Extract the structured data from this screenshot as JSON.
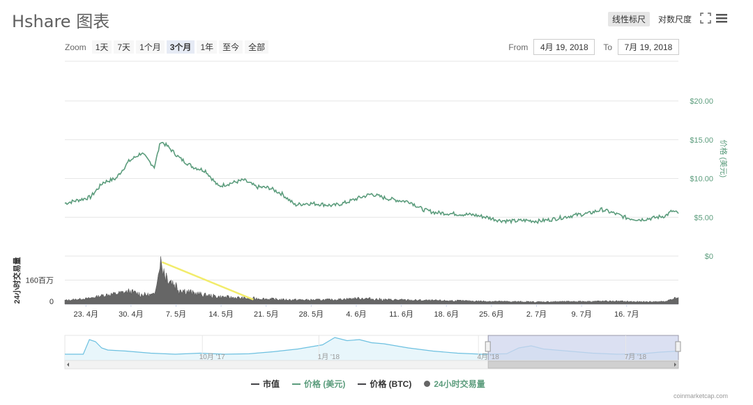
{
  "title": "Hshare 图表",
  "toolbar": {
    "linear_label": "线性标尺",
    "log_label": "对数尺度",
    "fullscreen_icon": "expand-icon",
    "menu_icon": "hamburger-icon"
  },
  "zoom": {
    "label": "Zoom",
    "buttons": [
      "1天",
      "7天",
      "1个月",
      "3个月",
      "1年",
      "至今",
      "全部"
    ],
    "active": "3个月"
  },
  "range": {
    "from_label": "From",
    "from_value": "4月 19, 2018",
    "to_label": "To",
    "to_value": "7月 19, 2018"
  },
  "credit": "coinmarketcap.com",
  "colors": {
    "price_usd": "#5b9c7c",
    "volume": "#666666",
    "annotation": "#f2ec6b",
    "navigator_line": "#6cc0e0",
    "navigator_mask": "#cfd6ee"
  },
  "chart_data": {
    "type": "line",
    "price_axis": {
      "label": "价格 (美元)",
      "ticks": [
        "$0",
        "$5.00",
        "$10.00",
        "$15.00",
        "$20.00"
      ],
      "ylim": [
        0,
        20
      ]
    },
    "volume_axis": {
      "label": "24小时交易量",
      "ticks": [
        "0",
        "160百万"
      ],
      "ylim": [
        0,
        320
      ]
    },
    "x_ticks": [
      "23. 4月",
      "30. 4月",
      "7. 5月",
      "14. 5月",
      "21. 5月",
      "28. 5月",
      "4. 6月",
      "11. 6月",
      "18. 6月",
      "25. 6月",
      "2. 7月",
      "9. 7月",
      "16. 7月"
    ],
    "price_usd": [
      [
        0,
        6.8
      ],
      [
        2,
        7.2
      ],
      [
        4,
        7.6
      ],
      [
        6,
        9.5
      ],
      [
        8,
        10.0
      ],
      [
        10,
        12.2
      ],
      [
        12,
        13.3
      ],
      [
        14,
        11.5
      ],
      [
        15,
        14.8
      ],
      [
        16,
        14.2
      ],
      [
        18,
        12.6
      ],
      [
        20,
        11.5
      ],
      [
        22,
        11.0
      ],
      [
        24,
        9.0
      ],
      [
        26,
        9.4
      ],
      [
        28,
        9.8
      ],
      [
        30,
        8.9
      ],
      [
        32,
        8.8
      ],
      [
        34,
        8.0
      ],
      [
        36,
        6.6
      ],
      [
        38,
        6.8
      ],
      [
        40,
        6.7
      ],
      [
        42,
        6.5
      ],
      [
        44,
        6.9
      ],
      [
        46,
        7.5
      ],
      [
        48,
        8.0
      ],
      [
        50,
        7.5
      ],
      [
        52,
        7.2
      ],
      [
        54,
        7.0
      ],
      [
        56,
        6.0
      ],
      [
        58,
        5.6
      ],
      [
        60,
        5.5
      ],
      [
        62,
        5.4
      ],
      [
        64,
        5.3
      ],
      [
        66,
        5.0
      ],
      [
        68,
        4.6
      ],
      [
        70,
        4.5
      ],
      [
        72,
        4.6
      ],
      [
        74,
        4.5
      ],
      [
        76,
        4.7
      ],
      [
        78,
        5.0
      ],
      [
        80,
        5.3
      ],
      [
        82,
        5.5
      ],
      [
        84,
        6.0
      ],
      [
        86,
        5.5
      ],
      [
        88,
        4.9
      ],
      [
        90,
        4.7
      ],
      [
        92,
        4.9
      ],
      [
        94,
        5.2
      ],
      [
        95,
        5.8
      ],
      [
        96,
        5.5
      ]
    ],
    "volume_24h": [
      [
        0,
        25
      ],
      [
        4,
        40
      ],
      [
        6,
        60
      ],
      [
        8,
        70
      ],
      [
        10,
        85
      ],
      [
        12,
        65
      ],
      [
        14,
        60
      ],
      [
        15,
        280
      ],
      [
        16,
        180
      ],
      [
        18,
        100
      ],
      [
        20,
        75
      ],
      [
        22,
        60
      ],
      [
        24,
        50
      ],
      [
        26,
        45
      ],
      [
        28,
        40
      ],
      [
        30,
        38
      ],
      [
        34,
        30
      ],
      [
        38,
        28
      ],
      [
        42,
        30
      ],
      [
        46,
        40
      ],
      [
        50,
        30
      ],
      [
        56,
        25
      ],
      [
        62,
        22
      ],
      [
        68,
        18
      ],
      [
        74,
        15
      ],
      [
        80,
        18
      ],
      [
        86,
        20
      ],
      [
        90,
        15
      ],
      [
        94,
        18
      ],
      [
        95,
        35
      ],
      [
        96,
        45
      ]
    ],
    "navigator": {
      "ticks": [
        "10月 '17",
        "1月 '18",
        "4月 '18",
        "7月 '18"
      ],
      "line": [
        [
          0,
          0.3
        ],
        [
          3,
          0.3
        ],
        [
          4,
          1.0
        ],
        [
          5,
          0.9
        ],
        [
          6,
          0.6
        ],
        [
          7,
          0.5
        ],
        [
          10,
          0.45
        ],
        [
          14,
          0.35
        ],
        [
          18,
          0.3
        ],
        [
          22,
          0.35
        ],
        [
          26,
          0.3
        ],
        [
          30,
          0.32
        ],
        [
          34,
          0.42
        ],
        [
          38,
          0.55
        ],
        [
          42,
          0.75
        ],
        [
          44,
          1.1
        ],
        [
          46,
          0.95
        ],
        [
          48,
          1.0
        ],
        [
          50,
          0.85
        ],
        [
          52,
          0.8
        ],
        [
          56,
          0.6
        ],
        [
          60,
          0.45
        ],
        [
          64,
          0.35
        ],
        [
          68,
          0.3
        ],
        [
          72,
          0.32
        ],
        [
          74,
          0.6
        ],
        [
          76,
          0.7
        ],
        [
          78,
          0.55
        ],
        [
          82,
          0.45
        ],
        [
          86,
          0.35
        ],
        [
          90,
          0.3
        ],
        [
          94,
          0.32
        ],
        [
          97,
          0.4
        ],
        [
          100,
          0.45
        ]
      ],
      "selected_range": [
        69,
        100
      ]
    },
    "annotation": "yellow trend line from volume spike (7. 5月) toward 16. 5月",
    "legend": [
      "市值",
      "价格 (美元)",
      "价格 (BTC)",
      "24小时交易量"
    ]
  }
}
